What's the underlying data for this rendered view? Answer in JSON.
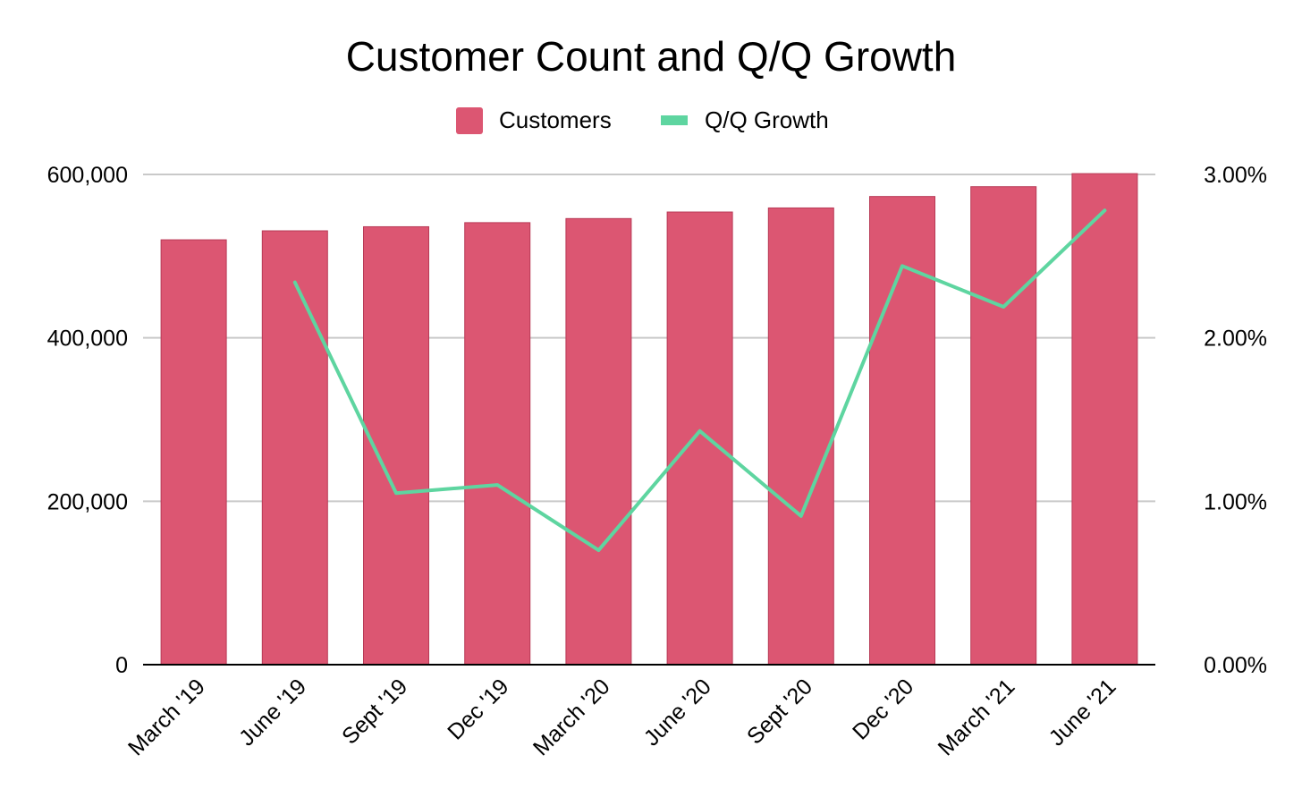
{
  "chart_data": {
    "type": "bar",
    "title": "Customer Count and Q/Q Growth",
    "legend_position": "top",
    "grid": true,
    "categories": [
      "March '19",
      "June '19",
      "Sept '19",
      "Dec '19",
      "March '20",
      "June '20",
      "Sept '20",
      "Dec '20",
      "March '21",
      "June '21"
    ],
    "series": [
      {
        "name": "Customers",
        "type": "bar",
        "axis": "left",
        "color": "#dc5672",
        "values": [
          520000,
          531000,
          536000,
          541000,
          546000,
          554000,
          559000,
          573000,
          585000,
          601000
        ]
      },
      {
        "name": "Q/Q Growth",
        "type": "line",
        "axis": "right",
        "color": "#5ed5a0",
        "values": [
          null,
          0.0234,
          0.0105,
          0.011,
          0.007,
          0.0143,
          0.0091,
          0.0244,
          0.0219,
          0.0278
        ]
      }
    ],
    "y_left": {
      "ylim": [
        0,
        600000
      ],
      "ticks": [
        0,
        200000,
        400000,
        600000
      ],
      "tick_labels": [
        "0",
        "200,000",
        "400,000",
        "600,000"
      ]
    },
    "y_right": {
      "ylim": [
        0,
        0.03
      ],
      "ticks": [
        0,
        0.01,
        0.02,
        0.03
      ],
      "tick_labels": [
        "0.00%",
        "1.00%",
        "2.00%",
        "3.00%"
      ]
    },
    "xlabel": "",
    "ylabel": ""
  }
}
